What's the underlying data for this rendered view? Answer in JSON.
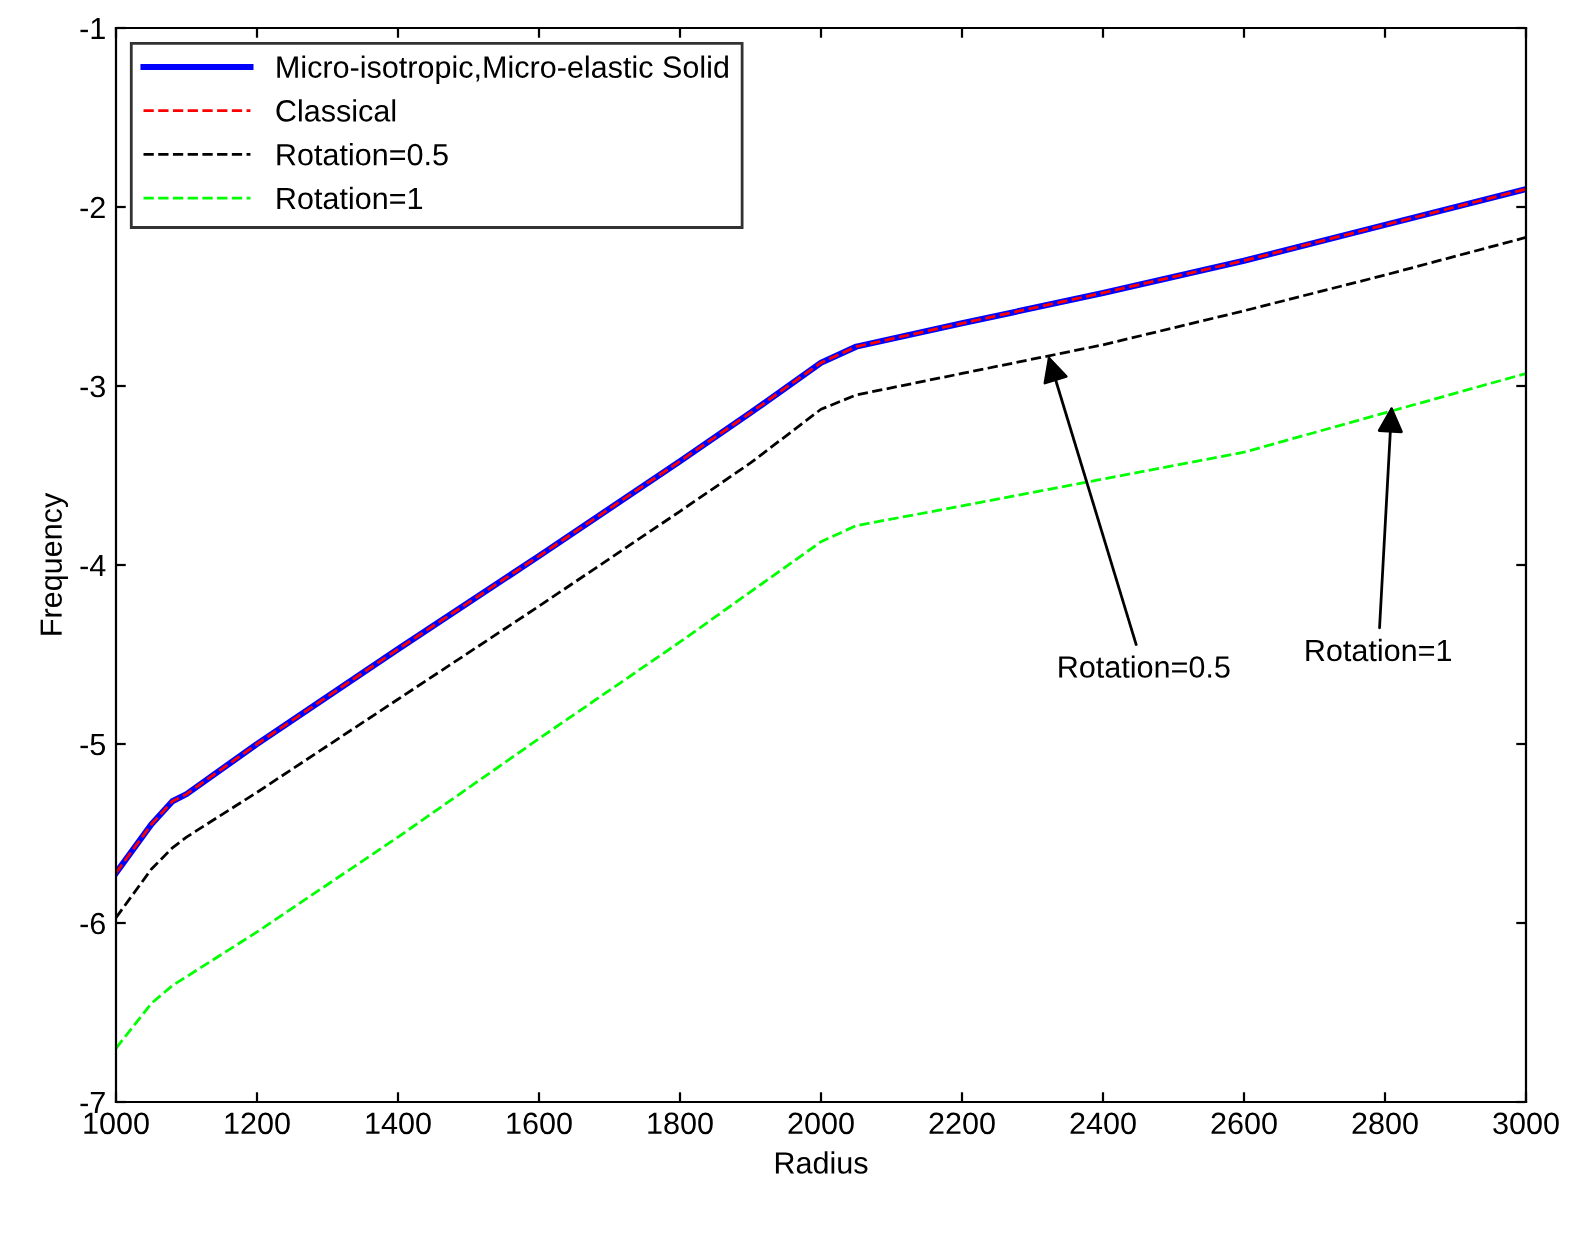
{
  "chart_data": {
    "type": "line",
    "xlabel": "Radius",
    "ylabel": "Frequency",
    "x": [
      1000,
      1050,
      1080,
      1100,
      1200,
      1400,
      1600,
      1800,
      1900,
      2000,
      2050,
      2200,
      2400,
      2600,
      2800,
      3000
    ],
    "series": [
      {
        "name": "Micro-isotropic,Micro-elastic Solid",
        "color": "#0000ff",
        "line_style": "solid",
        "values": [
          -5.72,
          -5.45,
          -5.32,
          -5.28,
          -5.0,
          -4.47,
          -3.95,
          -3.42,
          -3.15,
          -2.87,
          -2.78,
          -2.65,
          -2.48,
          -2.3,
          -2.1,
          -1.9
        ]
      },
      {
        "name": "Classical",
        "color": "#ff0000",
        "line_style": "dashed",
        "values": [
          -5.72,
          -5.45,
          -5.32,
          -5.28,
          -5.0,
          -4.47,
          -3.95,
          -3.42,
          -3.15,
          -2.87,
          -2.78,
          -2.65,
          -2.48,
          -2.3,
          -2.1,
          -1.9
        ]
      },
      {
        "name": "Rotation=0.5",
        "color": "#000000",
        "line_style": "dashed",
        "values": [
          -5.97,
          -5.7,
          -5.58,
          -5.52,
          -5.27,
          -4.75,
          -4.23,
          -3.7,
          -3.43,
          -3.13,
          -3.05,
          -2.93,
          -2.77,
          -2.58,
          -2.38,
          -2.17
        ]
      },
      {
        "name": "Rotation=1",
        "color": "#00ff00",
        "line_style": "dashed",
        "values": [
          -6.7,
          -6.45,
          -6.35,
          -6.3,
          -6.05,
          -5.52,
          -4.97,
          -4.43,
          -4.15,
          -3.87,
          -3.78,
          -3.67,
          -3.52,
          -3.37,
          -3.15,
          -2.93
        ]
      }
    ],
    "annotations": [
      {
        "text": "Rotation=0.5",
        "x": 2320,
        "y": -2.8
      },
      {
        "text": "Rotation=1",
        "x": 2810,
        "y": -3.08
      }
    ],
    "xlim": [
      1000,
      3000
    ],
    "xticks": [
      1000,
      1200,
      1400,
      1600,
      1800,
      2000,
      2200,
      2400,
      2600,
      2800,
      3000
    ],
    "ylim": [
      -7,
      -1
    ],
    "yticks": [
      -7,
      -6,
      -5,
      -4,
      -3,
      -2,
      -1
    ],
    "grid": false,
    "legend": "top left"
  }
}
